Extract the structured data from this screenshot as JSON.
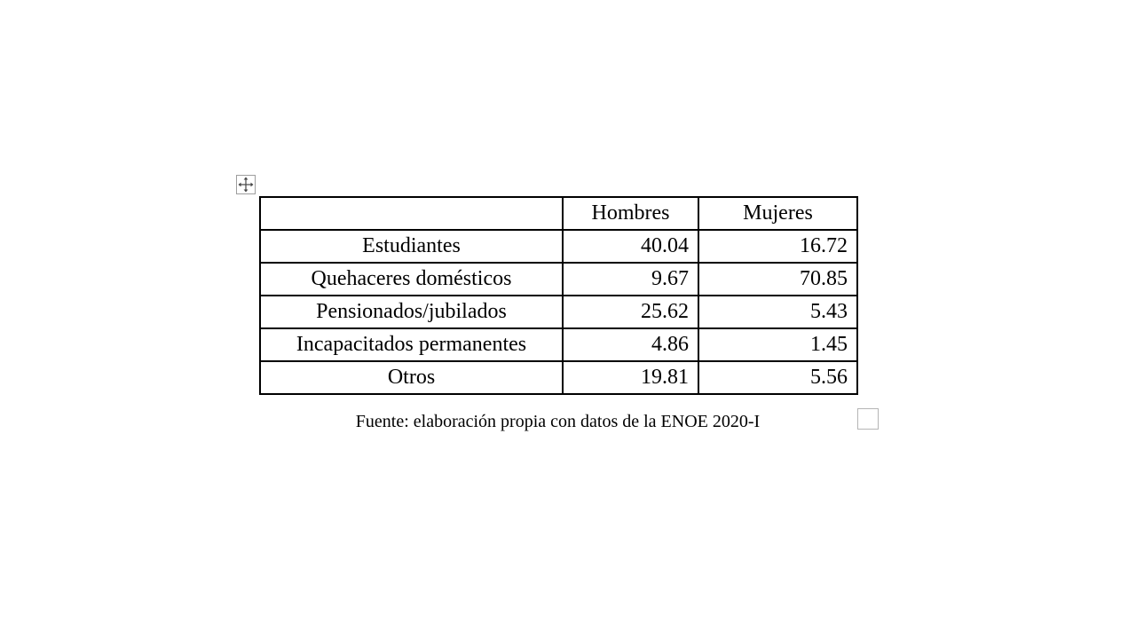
{
  "table": {
    "headers": [
      "",
      "Hombres",
      "Mujeres"
    ],
    "rows": [
      {
        "label": "Estudiantes",
        "hombres": "40.04",
        "mujeres": "16.72"
      },
      {
        "label": "Quehaceres domésticos",
        "hombres": "9.67",
        "mujeres": "70.85"
      },
      {
        "label": "Pensionados/jubilados",
        "hombres": "25.62",
        "mujeres": "5.43"
      },
      {
        "label": "Incapacitados permanentes",
        "hombres": "4.86",
        "mujeres": "1.45"
      },
      {
        "label": "Otros",
        "hombres": "19.81",
        "mujeres": "5.56"
      }
    ]
  },
  "source_note": "Fuente: elaboración propia con datos de la ENOE 2020-I",
  "icons": {
    "move_handle": "move-arrows-icon",
    "resize_handle": "table-resize-icon"
  }
}
